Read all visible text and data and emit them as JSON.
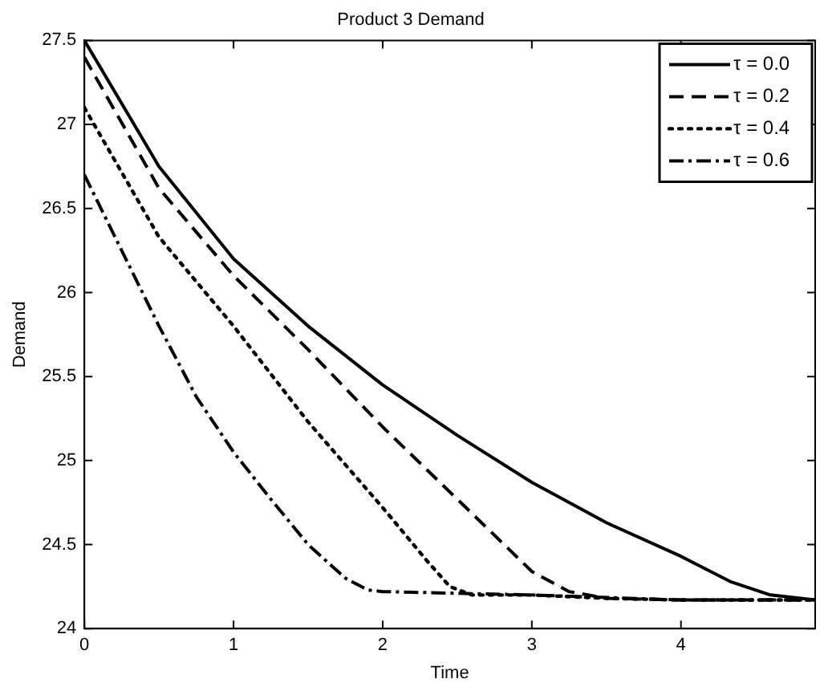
{
  "chart_data": {
    "type": "line",
    "title": "Product 3 Demand",
    "xlabel": "Time",
    "ylabel": "Demand",
    "xlim": [
      0,
      4.9
    ],
    "xticks": [
      0,
      1,
      2,
      3,
      4
    ],
    "ylim": [
      24,
      27.5
    ],
    "yticks": [
      24,
      24.5,
      25,
      25.5,
      26,
      26.5,
      27,
      27.5
    ],
    "grid": false,
    "legend": "top right",
    "marker": "none",
    "series": [
      {
        "name": "τ = 0.0",
        "color": "#000000",
        "line_style": "solid",
        "x": [
          0,
          0.5,
          1,
          1.5,
          2,
          2.5,
          3,
          3.5,
          4,
          4.33,
          4.6,
          4.9
        ],
        "values": [
          27.5,
          26.75,
          26.2,
          25.8,
          25.45,
          25.15,
          24.87,
          24.63,
          24.43,
          24.28,
          24.2,
          24.17
        ]
      },
      {
        "name": "τ = 0.2",
        "color": "#000000",
        "line_style": "dashed",
        "x": [
          0,
          0.5,
          1,
          1.5,
          2,
          2.5,
          3,
          3.25,
          3.5,
          4,
          4.9
        ],
        "values": [
          27.4,
          26.62,
          26.1,
          25.66,
          25.2,
          24.77,
          24.34,
          24.22,
          24.18,
          24.17,
          24.17
        ]
      },
      {
        "name": "τ = 0.4",
        "color": "#000000",
        "line_style": "dotted",
        "x": [
          0,
          0.5,
          1,
          1.5,
          2,
          2.3,
          2.45,
          2.6,
          3,
          3.5,
          4,
          4.9
        ],
        "values": [
          27.1,
          26.33,
          25.8,
          25.23,
          24.72,
          24.4,
          24.25,
          24.2,
          24.2,
          24.18,
          24.17,
          24.17
        ]
      },
      {
        "name": "τ = 0.6",
        "color": "#000000",
        "line_style": "dashdot",
        "x": [
          0,
          0.25,
          0.5,
          0.75,
          1,
          1.25,
          1.5,
          1.75,
          1.9,
          2,
          2.5,
          3,
          4,
          4.9
        ],
        "values": [
          26.7,
          26.25,
          25.8,
          25.38,
          25.05,
          24.77,
          24.5,
          24.3,
          24.23,
          24.22,
          24.21,
          24.2,
          24.17,
          24.17
        ]
      }
    ]
  }
}
